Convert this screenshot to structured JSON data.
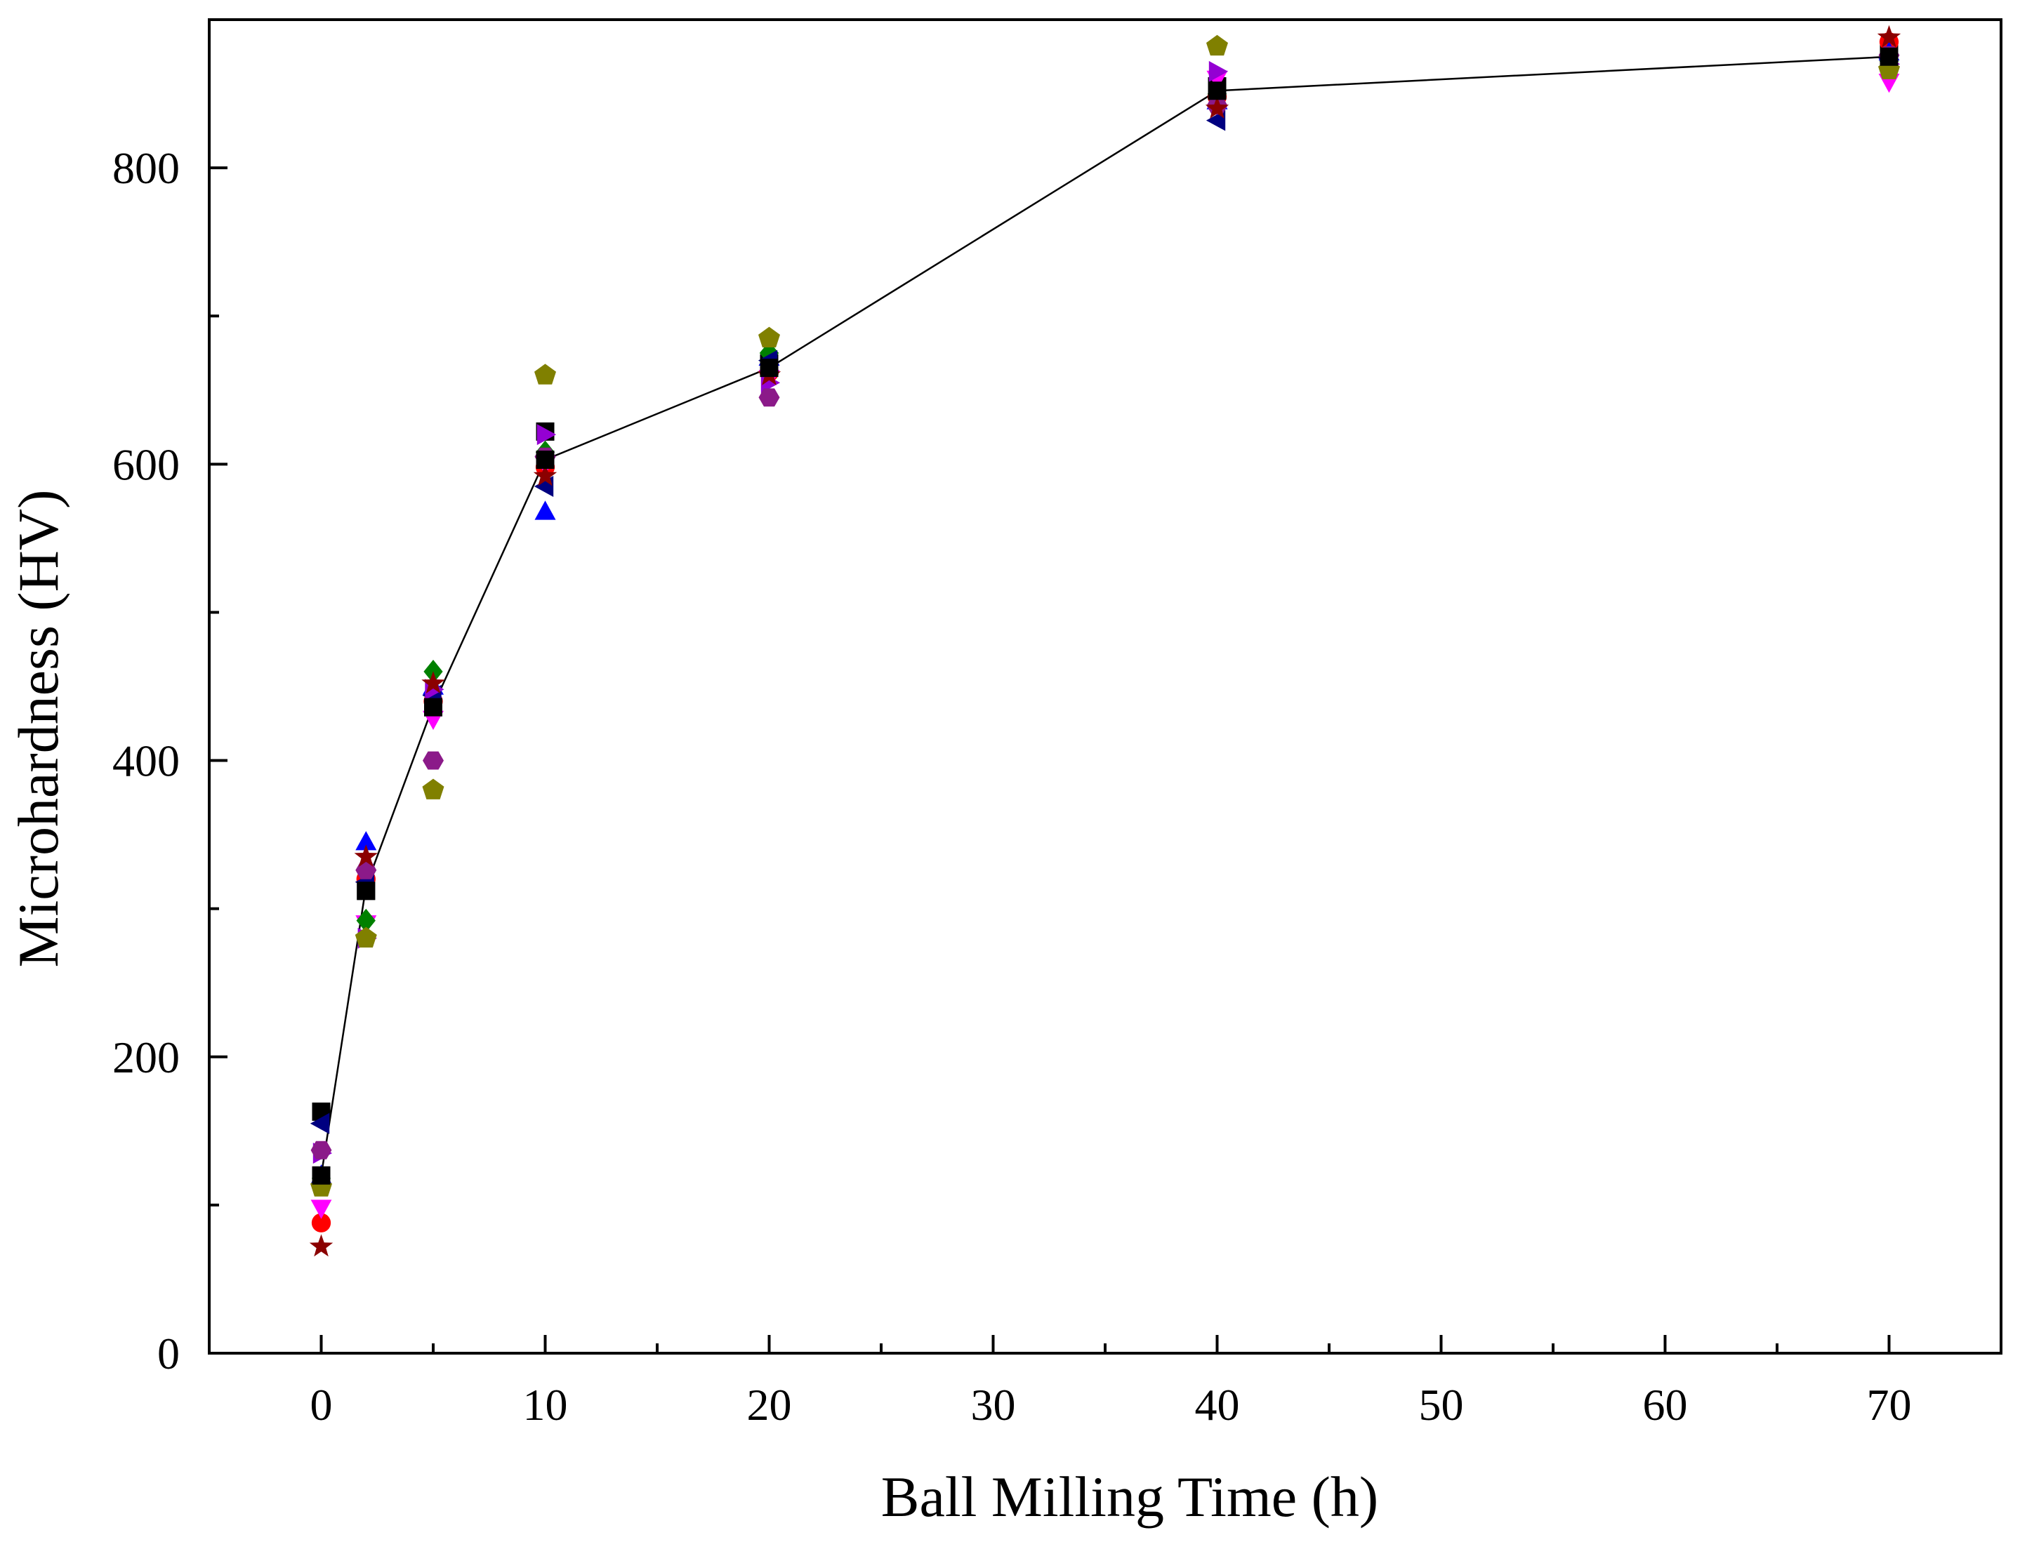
{
  "chart_data": {
    "type": "scatter",
    "title": "",
    "xlabel": "Ball Milling Time (h)",
    "ylabel": "Microhardness (HV)",
    "xlim": [
      -5,
      75
    ],
    "ylim": [
      0,
      900
    ],
    "x_ticks": [
      0,
      10,
      20,
      30,
      40,
      50,
      60,
      70
    ],
    "y_ticks": [
      0,
      200,
      400,
      600,
      800
    ],
    "grid": false,
    "legend": "none",
    "mean_line": {
      "x": [
        0,
        2,
        5,
        10,
        20,
        40,
        70
      ],
      "y": [
        120,
        315,
        437,
        603,
        665,
        852,
        875
      ]
    },
    "series": [
      {
        "name": "s1",
        "marker": "square",
        "color": "#000000",
        "x": [
          0,
          2,
          5,
          10,
          20,
          40,
          70
        ],
        "y": [
          163,
          312,
          436,
          622,
          668,
          855,
          880
        ]
      },
      {
        "name": "s2",
        "marker": "circle",
        "color": "#ff0000",
        "x": [
          0,
          2,
          5,
          10,
          20,
          40,
          70
        ],
        "y": [
          88,
          320,
          440,
          598,
          662,
          848,
          885
        ]
      },
      {
        "name": "s3",
        "marker": "triangle-up",
        "color": "#0000ff",
        "x": [
          0,
          2,
          5,
          10,
          20,
          40,
          70
        ],
        "y": [
          120,
          345,
          450,
          568,
          672,
          845,
          878
        ]
      },
      {
        "name": "s4",
        "marker": "triangle-down",
        "color": "#ff00ff",
        "x": [
          0,
          2,
          5,
          10,
          20,
          40,
          70
        ],
        "y": [
          98,
          290,
          428,
          600,
          658,
          860,
          858
        ]
      },
      {
        "name": "s5",
        "marker": "diamond",
        "color": "#008000",
        "x": [
          0,
          2,
          5,
          10,
          20,
          40,
          70
        ],
        "y": [
          118,
          292,
          460,
          608,
          675,
          850,
          872
        ]
      },
      {
        "name": "s6",
        "marker": "triangle-left",
        "color": "#000080",
        "x": [
          0,
          2,
          5,
          10,
          20,
          40,
          70
        ],
        "y": [
          155,
          318,
          444,
          585,
          670,
          832,
          874
        ]
      },
      {
        "name": "s7",
        "marker": "triangle-right",
        "color": "#9400d3",
        "x": [
          0,
          2,
          5,
          10,
          20,
          40,
          70
        ],
        "y": [
          135,
          280,
          448,
          620,
          655,
          865,
          870
        ]
      },
      {
        "name": "s8",
        "marker": "hexagon",
        "color": "#8b1a89",
        "x": [
          0,
          2,
          5,
          10,
          20,
          40,
          70
        ],
        "y": [
          137,
          326,
          400,
          605,
          645,
          842,
          876
        ]
      },
      {
        "name": "s9",
        "marker": "star",
        "color": "#8b0000",
        "x": [
          0,
          2,
          5,
          10,
          20,
          40,
          70
        ],
        "y": [
          72,
          335,
          452,
          592,
          660,
          840,
          888
        ]
      },
      {
        "name": "s10",
        "marker": "pentagon",
        "color": "#808000",
        "x": [
          0,
          2,
          5,
          10,
          20,
          40,
          70
        ],
        "y": [
          112,
          280,
          380,
          660,
          685,
          882,
          866
        ]
      },
      {
        "name": "s11",
        "marker": "square",
        "color": "#000000",
        "x": [
          0,
          2,
          5,
          10,
          20,
          40,
          70
        ],
        "y": [
          120,
          312,
          436,
          603,
          665,
          852,
          875
        ]
      }
    ]
  }
}
